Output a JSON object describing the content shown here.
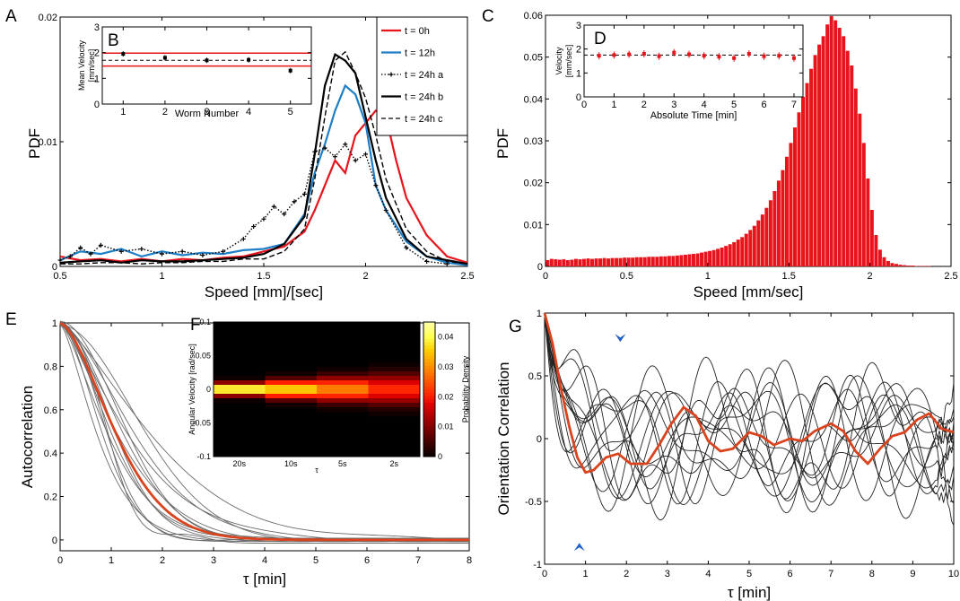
{
  "chart_data": [
    {
      "panel": "A",
      "type": "line",
      "xlabel": "Speed [mm]/[sec]",
      "ylabel": "PDF",
      "xlim": [
        0.5,
        2.5
      ],
      "ylim": [
        0,
        0.02
      ],
      "xticks": [
        "0.5",
        "1",
        "1.5",
        "2",
        "2.5"
      ],
      "yticks": [
        "0",
        "0.01",
        "0.02"
      ],
      "legend_position": "top-right",
      "series": [
        {
          "name": "t = 0h",
          "color": "#e8141c",
          "style": "solid",
          "x": [
            0.5,
            0.6,
            0.7,
            0.8,
            0.9,
            1.0,
            1.1,
            1.2,
            1.3,
            1.4,
            1.5,
            1.6,
            1.7,
            1.75,
            1.8,
            1.85,
            1.9,
            1.95,
            2.0,
            2.05,
            2.1,
            2.15,
            2.2,
            2.3,
            2.4,
            2.5
          ],
          "y": [
            0.0008,
            0.0005,
            0.0006,
            0.0004,
            0.0006,
            0.0004,
            0.0006,
            0.0005,
            0.0007,
            0.0008,
            0.0012,
            0.0016,
            0.0028,
            0.0045,
            0.0065,
            0.0085,
            0.0075,
            0.0105,
            0.0115,
            0.0125,
            0.012,
            0.0085,
            0.0055,
            0.0025,
            0.0008,
            0.0003
          ]
        },
        {
          "name": "t = 12h",
          "color": "#1e7fc6",
          "style": "solid",
          "x": [
            0.5,
            0.6,
            0.7,
            0.8,
            0.9,
            1.0,
            1.1,
            1.2,
            1.3,
            1.4,
            1.5,
            1.6,
            1.7,
            1.75,
            1.8,
            1.85,
            1.9,
            1.95,
            2.0,
            2.05,
            2.1,
            2.2,
            2.3,
            2.4,
            2.5
          ],
          "y": [
            0.0005,
            0.0012,
            0.001,
            0.0014,
            0.0008,
            0.0012,
            0.0009,
            0.0011,
            0.001,
            0.0013,
            0.0014,
            0.0018,
            0.0042,
            0.0075,
            0.0098,
            0.0125,
            0.0145,
            0.0138,
            0.0115,
            0.0065,
            0.0045,
            0.002,
            0.0008,
            0.0003,
            0.0001
          ]
        },
        {
          "name": "t = 24h a",
          "color": "#000000",
          "style": "dotted-marker",
          "x": [
            0.5,
            0.55,
            0.6,
            0.65,
            0.7,
            0.8,
            0.9,
            1.0,
            1.1,
            1.2,
            1.3,
            1.4,
            1.45,
            1.5,
            1.55,
            1.6,
            1.65,
            1.7,
            1.75,
            1.8,
            1.85,
            1.9,
            1.95,
            2.0,
            2.05,
            2.1,
            2.2,
            2.3,
            2.4
          ],
          "y": [
            0.0005,
            0.0008,
            0.0015,
            0.001,
            0.0017,
            0.0012,
            0.0014,
            0.001,
            0.0012,
            0.0009,
            0.0012,
            0.0022,
            0.0032,
            0.0038,
            0.0048,
            0.0042,
            0.0052,
            0.0058,
            0.0092,
            0.0095,
            0.0088,
            0.0098,
            0.0085,
            0.009,
            0.0065,
            0.0045,
            0.0015,
            0.0004,
            0.0002
          ]
        },
        {
          "name": "t = 24h b",
          "color": "#000000",
          "style": "solid",
          "x": [
            0.5,
            0.6,
            0.7,
            0.8,
            0.9,
            1.0,
            1.1,
            1.2,
            1.3,
            1.4,
            1.5,
            1.6,
            1.7,
            1.75,
            1.8,
            1.85,
            1.9,
            1.95,
            2.0,
            2.05,
            2.1,
            2.2,
            2.3,
            2.4,
            2.5
          ],
          "y": [
            0.0003,
            0.0004,
            0.0005,
            0.0003,
            0.0005,
            0.0004,
            0.0004,
            0.0005,
            0.0006,
            0.0007,
            0.001,
            0.0018,
            0.004,
            0.009,
            0.0145,
            0.017,
            0.0165,
            0.0155,
            0.012,
            0.0085,
            0.0055,
            0.0022,
            0.0008,
            0.0005,
            0.0002
          ]
        },
        {
          "name": "t = 24h c",
          "color": "#000000",
          "style": "dashed",
          "x": [
            0.5,
            0.6,
            0.7,
            0.8,
            0.9,
            1.0,
            1.1,
            1.2,
            1.3,
            1.4,
            1.5,
            1.6,
            1.7,
            1.75,
            1.8,
            1.85,
            1.9,
            1.95,
            2.0,
            2.05,
            2.1,
            2.2,
            2.3,
            2.4,
            2.5
          ],
          "y": [
            0.0002,
            0.0002,
            0.0003,
            0.0003,
            0.0002,
            0.0003,
            0.0003,
            0.0004,
            0.0004,
            0.0006,
            0.0006,
            0.0012,
            0.003,
            0.007,
            0.012,
            0.0165,
            0.0172,
            0.0155,
            0.0135,
            0.0105,
            0.007,
            0.003,
            0.0012,
            0.0004,
            0.0002
          ]
        }
      ]
    },
    {
      "panel": "B",
      "type": "scatter",
      "inset": true,
      "xlabel": "Worm Number",
      "ylabel": "Mean Velocity [mm/sec]",
      "xlim": [
        0.5,
        5.5
      ],
      "ylim": [
        0,
        3
      ],
      "xticks": [
        "1",
        "2",
        "3",
        "4",
        "5"
      ],
      "yticks": [
        "0",
        "1",
        "2",
        "3"
      ],
      "series": [
        {
          "name": "",
          "x": [
            1,
            2,
            3,
            4,
            5
          ],
          "y": [
            1.95,
            1.8,
            1.7,
            1.72,
            1.3
          ]
        }
      ],
      "hlines": {
        "red": [
          1.48,
          1.98
        ],
        "dashed": 1.7
      }
    },
    {
      "panel": "C",
      "type": "bar",
      "xlabel": "Speed [mm/sec]",
      "ylabel": "PDF",
      "xlim": [
        0,
        2.5
      ],
      "ylim": [
        0,
        0.06
      ],
      "xticks": [
        "0",
        "0.5",
        "1",
        "1.5",
        "2",
        "2.5"
      ],
      "yticks": [
        "0",
        "0.01",
        "0.02",
        "0.03",
        "0.04",
        "0.05",
        "0.06"
      ],
      "bar_color": "#e8141c",
      "x": [
        0.0125,
        0.0375,
        0.0625,
        0.0875,
        0.1125,
        0.1375,
        0.1625,
        0.1875,
        0.2125,
        0.2375,
        0.2625,
        0.2875,
        0.3125,
        0.3375,
        0.3625,
        0.3875,
        0.4125,
        0.4375,
        0.4625,
        0.4875,
        0.5125,
        0.5375,
        0.5625,
        0.5875,
        0.6125,
        0.6375,
        0.6625,
        0.6875,
        0.7125,
        0.7375,
        0.7625,
        0.7875,
        0.8125,
        0.8375,
        0.8625,
        0.8875,
        0.9125,
        0.9375,
        0.9625,
        0.9875,
        1.0125,
        1.0375,
        1.0625,
        1.0875,
        1.1125,
        1.1375,
        1.1625,
        1.1875,
        1.2125,
        1.2375,
        1.2625,
        1.2875,
        1.3125,
        1.3375,
        1.3625,
        1.3875,
        1.4125,
        1.4375,
        1.4625,
        1.4875,
        1.5125,
        1.5375,
        1.5625,
        1.5875,
        1.6125,
        1.6375,
        1.6625,
        1.6875,
        1.7125,
        1.7375,
        1.7625,
        1.7875,
        1.8125,
        1.8375,
        1.8625,
        1.8875,
        1.9125,
        1.9375,
        1.9625,
        1.9875,
        2.0125,
        2.0375,
        2.0625,
        2.0875,
        2.1125,
        2.1375,
        2.1625,
        2.1875,
        2.2125,
        2.2375,
        2.2625,
        2.2875,
        2.3125,
        2.3375,
        2.3625,
        2.3875
      ],
      "values": [
        0.0015,
        0.0018,
        0.0017,
        0.0016,
        0.0017,
        0.0015,
        0.0016,
        0.0018,
        0.0017,
        0.0018,
        0.0019,
        0.0018,
        0.0019,
        0.0019,
        0.002,
        0.0019,
        0.002,
        0.002,
        0.002,
        0.0021,
        0.0021,
        0.0021,
        0.0022,
        0.0022,
        0.0022,
        0.0023,
        0.0023,
        0.0023,
        0.0024,
        0.0024,
        0.0025,
        0.0025,
        0.0026,
        0.0027,
        0.0028,
        0.0029,
        0.003,
        0.0031,
        0.0033,
        0.0035,
        0.0037,
        0.0039,
        0.0042,
        0.0045,
        0.0049,
        0.0053,
        0.0058,
        0.0064,
        0.007,
        0.0078,
        0.0087,
        0.0097,
        0.011,
        0.0124,
        0.014,
        0.0158,
        0.018,
        0.0205,
        0.023,
        0.0262,
        0.0295,
        0.0332,
        0.0368,
        0.0405,
        0.0438,
        0.0472,
        0.0505,
        0.053,
        0.055,
        0.0578,
        0.0598,
        0.0588,
        0.057,
        0.055,
        0.0515,
        0.048,
        0.0425,
        0.0365,
        0.0295,
        0.021,
        0.0135,
        0.0075,
        0.004,
        0.0022,
        0.0013,
        0.0008,
        0.0006,
        0.0004,
        0.0003,
        0.0002,
        0.0002,
        0.0001,
        0.0001,
        0.0001,
        0.0001,
        0.0
      ]
    },
    {
      "panel": "D",
      "type": "scatter",
      "inset": true,
      "xlabel": "Absolute Time [min]",
      "ylabel": "Velocity [mm/sec]",
      "xlim": [
        0,
        7.3
      ],
      "ylim": [
        0,
        3
      ],
      "xticks": [
        "0",
        "1",
        "2",
        "3",
        "4",
        "5",
        "6",
        "7"
      ],
      "yticks": [
        "0",
        "1",
        "2",
        "3"
      ],
      "series": [
        {
          "name": "",
          "x": [
            0.5,
            1,
            1.5,
            2,
            2.5,
            3,
            3.5,
            4,
            4.5,
            5,
            5.5,
            6,
            6.5,
            7
          ],
          "y": [
            1.72,
            1.75,
            1.78,
            1.8,
            1.7,
            1.85,
            1.78,
            1.72,
            1.68,
            1.62,
            1.8,
            1.7,
            1.72,
            1.62
          ]
        }
      ],
      "hline": 1.75
    },
    {
      "panel": "E",
      "type": "line",
      "xlabel": "τ [min]",
      "ylabel": "Autocorrelation",
      "xlim": [
        0,
        8
      ],
      "ylim": [
        -0.05,
        1
      ],
      "xticks": [
        "0",
        "1",
        "2",
        "3",
        "4",
        "5",
        "6",
        "7",
        "8"
      ],
      "yticks": [
        "0",
        "0.2",
        "0.4",
        "0.6",
        "0.8",
        "1"
      ],
      "mean_color": "#d9431e"
    },
    {
      "panel": "F",
      "type": "heatmap",
      "inset": true,
      "xlabel": "τ",
      "ylabel": "Angular Velocity [rad/sec]",
      "xticks": [
        "20s",
        "10s",
        "5s",
        "2s"
      ],
      "yticks": [
        "0.1",
        "0.05",
        "0",
        "-0.05",
        "-0.1"
      ],
      "colorbar_label": "Probability Density",
      "colorbar_ticks": [
        "0.04",
        "0.03",
        "0.02",
        "0.01",
        "0"
      ],
      "peak_density": [
        0.045,
        0.038,
        0.03,
        0.022
      ]
    },
    {
      "panel": "G",
      "type": "line",
      "xlabel": "τ [min]",
      "ylabel": "Orientation Correlation",
      "xlim": [
        0,
        10
      ],
      "ylim": [
        -1,
        1
      ],
      "xticks": [
        "0",
        "1",
        "2",
        "3",
        "4",
        "5",
        "6",
        "7",
        "8",
        "9",
        "10"
      ],
      "yticks": [
        "-1",
        "-0.5",
        "0",
        "0.5",
        "1"
      ],
      "mean_color": "#d9431e",
      "marker_color": "#2060c8",
      "mean": {
        "x": [
          0,
          0.2,
          0.4,
          0.6,
          0.8,
          1.0,
          1.2,
          1.5,
          1.8,
          2.1,
          2.5,
          2.8,
          3.1,
          3.4,
          3.7,
          4.0,
          4.3,
          4.6,
          5.0,
          5.3,
          5.6,
          6.0,
          6.3,
          6.6,
          7.0,
          7.3,
          7.6,
          7.9,
          8.2,
          8.5,
          8.8,
          9.1,
          9.4,
          9.7,
          10
        ],
        "y": [
          1.0,
          0.75,
          0.4,
          0.1,
          -0.15,
          -0.27,
          -0.25,
          -0.15,
          -0.12,
          -0.2,
          -0.2,
          -0.05,
          0.12,
          0.25,
          0.18,
          -0.02,
          -0.1,
          -0.08,
          0.05,
          0.02,
          -0.05,
          0.0,
          -0.02,
          0.06,
          0.12,
          0.06,
          -0.1,
          -0.2,
          -0.08,
          0.02,
          0.05,
          0.15,
          0.2,
          0.08,
          0.05
        ]
      }
    }
  ]
}
